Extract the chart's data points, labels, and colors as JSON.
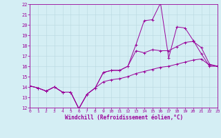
{
  "xlabel": "Windchill (Refroidissement éolien,°C)",
  "xlim": [
    0,
    23
  ],
  "ylim": [
    12,
    22
  ],
  "yticks": [
    12,
    13,
    14,
    15,
    16,
    17,
    18,
    19,
    20,
    21,
    22
  ],
  "xticks": [
    0,
    1,
    2,
    3,
    4,
    5,
    6,
    7,
    8,
    9,
    10,
    11,
    12,
    13,
    14,
    15,
    16,
    17,
    18,
    19,
    20,
    21,
    22,
    23
  ],
  "line_color": "#990099",
  "bg_color": "#d4eef4",
  "grid_color": "#b0d8e8",
  "line1_x": [
    0,
    1,
    2,
    3,
    4,
    5,
    6,
    7,
    8,
    9,
    10,
    11,
    12,
    13,
    14,
    15,
    16,
    17,
    18,
    19,
    20,
    21,
    22,
    23
  ],
  "line1_y": [
    14.1,
    13.9,
    13.6,
    14.0,
    13.5,
    13.5,
    11.9,
    13.3,
    13.9,
    15.4,
    15.6,
    15.6,
    16.0,
    18.1,
    20.4,
    20.5,
    22.1,
    16.8,
    19.8,
    19.7,
    18.5,
    17.2,
    16.0,
    16.0
  ],
  "line2_x": [
    0,
    1,
    2,
    3,
    4,
    5,
    6,
    7,
    8,
    9,
    10,
    11,
    12,
    13,
    14,
    15,
    16,
    17,
    18,
    19,
    20,
    21,
    22,
    23
  ],
  "line2_y": [
    14.1,
    13.9,
    13.6,
    14.0,
    13.5,
    13.5,
    11.9,
    13.3,
    13.9,
    15.4,
    15.6,
    15.6,
    16.0,
    17.5,
    17.3,
    17.6,
    17.5,
    17.5,
    17.9,
    18.3,
    18.4,
    17.8,
    16.2,
    16.0
  ],
  "line3_x": [
    0,
    1,
    2,
    3,
    4,
    5,
    6,
    7,
    8,
    9,
    10,
    11,
    12,
    13,
    14,
    15,
    16,
    17,
    18,
    19,
    20,
    21,
    22,
    23
  ],
  "line3_y": [
    14.1,
    13.9,
    13.6,
    14.0,
    13.5,
    13.5,
    11.9,
    13.3,
    13.9,
    14.5,
    14.7,
    14.8,
    15.0,
    15.3,
    15.5,
    15.7,
    15.9,
    16.0,
    16.2,
    16.4,
    16.6,
    16.7,
    16.1,
    16.0
  ]
}
